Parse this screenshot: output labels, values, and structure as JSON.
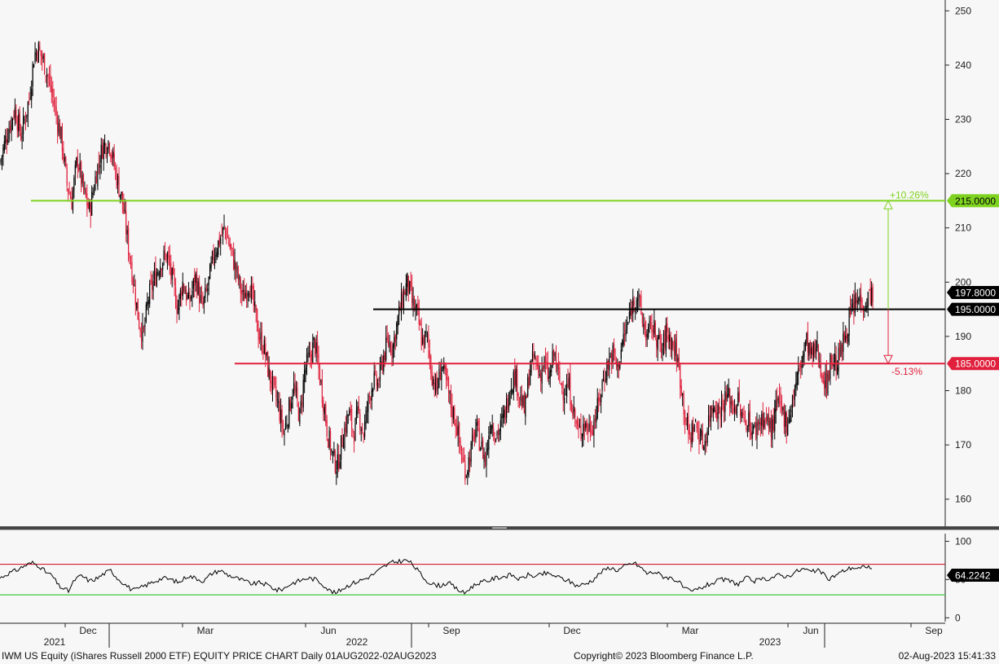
{
  "chart_data": {
    "type": "candlestick",
    "price_panel": {
      "ylim": [
        155,
        252
      ],
      "yticks": [
        160,
        170,
        180,
        190,
        200,
        210,
        220,
        230,
        240,
        250
      ],
      "last_price_label": "197.8000",
      "close_path": [
        [
          0,
          222
        ],
        [
          8,
          227
        ],
        [
          18,
          232
        ],
        [
          26,
          227
        ],
        [
          36,
          234
        ],
        [
          42,
          242
        ],
        [
          47,
          243
        ],
        [
          55,
          240
        ],
        [
          62,
          236
        ],
        [
          70,
          230
        ],
        [
          76,
          226
        ],
        [
          82,
          218
        ],
        [
          88,
          215
        ],
        [
          95,
          223
        ],
        [
          102,
          217
        ],
        [
          110,
          213
        ],
        [
          118,
          220
        ],
        [
          126,
          225
        ],
        [
          134,
          226
        ],
        [
          142,
          220
        ],
        [
          150,
          215
        ],
        [
          158,
          206
        ],
        [
          164,
          200
        ],
        [
          170,
          193
        ],
        [
          176,
          190
        ],
        [
          182,
          197
        ],
        [
          190,
          201
        ],
        [
          198,
          204
        ],
        [
          205,
          205
        ],
        [
          212,
          200
        ],
        [
          218,
          195
        ],
        [
          224,
          200
        ],
        [
          232,
          196
        ],
        [
          240,
          201
        ],
        [
          248,
          195
        ],
        [
          255,
          199
        ],
        [
          262,
          205
        ],
        [
          270,
          208
        ],
        [
          276,
          210
        ],
        [
          283,
          206
        ],
        [
          290,
          202
        ],
        [
          298,
          197
        ],
        [
          306,
          200
        ],
        [
          312,
          195
        ],
        [
          318,
          190
        ],
        [
          324,
          188
        ],
        [
          330,
          183
        ],
        [
          336,
          180
        ],
        [
          342,
          177
        ],
        [
          348,
          172
        ],
        [
          354,
          176
        ],
        [
          360,
          181
        ],
        [
          368,
          175
        ],
        [
          374,
          184
        ],
        [
          380,
          186
        ],
        [
          386,
          189
        ],
        [
          392,
          183
        ],
        [
          398,
          177
        ],
        [
          402,
          172
        ],
        [
          408,
          168
        ],
        [
          414,
          166
        ],
        [
          420,
          171
        ],
        [
          428,
          176
        ],
        [
          434,
          172
        ],
        [
          440,
          176
        ],
        [
          446,
          172
        ],
        [
          452,
          178
        ],
        [
          458,
          182
        ],
        [
          464,
          181
        ],
        [
          470,
          186
        ],
        [
          476,
          189
        ],
        [
          482,
          188
        ],
        [
          488,
          193
        ],
        [
          494,
          197
        ],
        [
          500,
          200
        ],
        [
          506,
          196
        ],
        [
          512,
          194
        ],
        [
          518,
          189
        ],
        [
          524,
          190
        ],
        [
          530,
          183
        ],
        [
          536,
          180
        ],
        [
          542,
          185
        ],
        [
          548,
          181
        ],
        [
          554,
          177
        ],
        [
          560,
          174
        ],
        [
          566,
          168
        ],
        [
          572,
          165
        ],
        [
          578,
          169
        ],
        [
          584,
          173
        ],
        [
          590,
          170
        ],
        [
          596,
          167
        ],
        [
          602,
          175
        ],
        [
          608,
          172
        ],
        [
          614,
          173
        ],
        [
          620,
          176
        ],
        [
          626,
          181
        ],
        [
          632,
          183
        ],
        [
          638,
          179
        ],
        [
          644,
          176
        ],
        [
          650,
          184
        ],
        [
          656,
          186
        ],
        [
          662,
          183
        ],
        [
          668,
          185
        ],
        [
          674,
          182
        ],
        [
          680,
          187
        ],
        [
          686,
          182
        ],
        [
          692,
          180
        ],
        [
          698,
          181
        ],
        [
          704,
          176
        ],
        [
          710,
          172
        ],
        [
          716,
          174
        ],
        [
          722,
          173
        ],
        [
          728,
          174
        ],
        [
          734,
          177
        ],
        [
          740,
          182
        ],
        [
          746,
          185
        ],
        [
          752,
          187
        ],
        [
          758,
          184
        ],
        [
          764,
          189
        ],
        [
          770,
          192
        ],
        [
          776,
          196
        ],
        [
          782,
          198
        ],
        [
          788,
          193
        ],
        [
          794,
          190
        ],
        [
          800,
          192
        ],
        [
          806,
          190
        ],
        [
          812,
          187
        ],
        [
          818,
          191
        ],
        [
          824,
          189
        ],
        [
          830,
          187
        ],
        [
          836,
          181
        ],
        [
          840,
          176
        ],
        [
          846,
          171
        ],
        [
          852,
          174
        ],
        [
          858,
          172
        ],
        [
          864,
          170
        ],
        [
          870,
          175
        ],
        [
          876,
          178
        ],
        [
          882,
          176
        ],
        [
          888,
          178
        ],
        [
          894,
          179
        ],
        [
          900,
          177
        ],
        [
          906,
          178
        ],
        [
          912,
          174
        ],
        [
          918,
          175
        ],
        [
          924,
          172
        ],
        [
          930,
          174
        ],
        [
          936,
          175
        ],
        [
          942,
          174
        ],
        [
          948,
          173
        ],
        [
          954,
          178
        ],
        [
          960,
          176
        ],
        [
          966,
          174
        ],
        [
          972,
          178
        ],
        [
          978,
          182
        ],
        [
          984,
          186
        ],
        [
          990,
          189
        ],
        [
          996,
          186
        ],
        [
          1002,
          188
        ],
        [
          1008,
          184
        ],
        [
          1014,
          181
        ],
        [
          1020,
          186
        ],
        [
          1026,
          185
        ],
        [
          1032,
          187
        ],
        [
          1038,
          191
        ],
        [
          1044,
          194
        ],
        [
          1050,
          196
        ],
        [
          1056,
          197
        ],
        [
          1062,
          196
        ],
        [
          1068,
          198
        ],
        [
          1072,
          197.8
        ]
      ]
    },
    "rsi_panel": {
      "ylim": [
        -5,
        110
      ],
      "yticks": [
        0,
        50,
        100
      ],
      "overbought": 70,
      "oversold": 30,
      "last_value_label": "64.2242",
      "line_path": [
        [
          0,
          52
        ],
        [
          10,
          58
        ],
        [
          20,
          62
        ],
        [
          30,
          68
        ],
        [
          40,
          72
        ],
        [
          48,
          68
        ],
        [
          56,
          60
        ],
        [
          64,
          55
        ],
        [
          72,
          42
        ],
        [
          78,
          38
        ],
        [
          84,
          35
        ],
        [
          92,
          50
        ],
        [
          100,
          55
        ],
        [
          110,
          48
        ],
        [
          120,
          52
        ],
        [
          128,
          58
        ],
        [
          136,
          62
        ],
        [
          144,
          52
        ],
        [
          152,
          45
        ],
        [
          160,
          38
        ],
        [
          166,
          36
        ],
        [
          174,
          40
        ],
        [
          182,
          44
        ],
        [
          190,
          48
        ],
        [
          200,
          52
        ],
        [
          210,
          50
        ],
        [
          220,
          46
        ],
        [
          230,
          55
        ],
        [
          240,
          52
        ],
        [
          250,
          48
        ],
        [
          260,
          58
        ],
        [
          270,
          62
        ],
        [
          280,
          56
        ],
        [
          290,
          52
        ],
        [
          300,
          48
        ],
        [
          310,
          44
        ],
        [
          320,
          46
        ],
        [
          330,
          42
        ],
        [
          340,
          36
        ],
        [
          348,
          38
        ],
        [
          356,
          44
        ],
        [
          366,
          48
        ],
        [
          378,
          52
        ],
        [
          388,
          50
        ],
        [
          396,
          44
        ],
        [
          404,
          36
        ],
        [
          412,
          32
        ],
        [
          420,
          38
        ],
        [
          430,
          44
        ],
        [
          440,
          48
        ],
        [
          450,
          52
        ],
        [
          460,
          58
        ],
        [
          470,
          66
        ],
        [
          480,
          72
        ],
        [
          490,
          74
        ],
        [
          500,
          75
        ],
        [
          506,
          70
        ],
        [
          514,
          60
        ],
        [
          522,
          50
        ],
        [
          530,
          44
        ],
        [
          540,
          42
        ],
        [
          550,
          46
        ],
        [
          560,
          38
        ],
        [
          570,
          32
        ],
        [
          578,
          40
        ],
        [
          588,
          46
        ],
        [
          598,
          48
        ],
        [
          608,
          52
        ],
        [
          618,
          54
        ],
        [
          628,
          56
        ],
        [
          638,
          50
        ],
        [
          648,
          56
        ],
        [
          658,
          54
        ],
        [
          668,
          58
        ],
        [
          678,
          56
        ],
        [
          688,
          52
        ],
        [
          698,
          48
        ],
        [
          708,
          42
        ],
        [
          718,
          44
        ],
        [
          728,
          50
        ],
        [
          738,
          60
        ],
        [
          748,
          66
        ],
        [
          758,
          62
        ],
        [
          768,
          68
        ],
        [
          778,
          72
        ],
        [
          786,
          66
        ],
        [
          794,
          58
        ],
        [
          804,
          60
        ],
        [
          814,
          54
        ],
        [
          824,
          52
        ],
        [
          832,
          48
        ],
        [
          840,
          38
        ],
        [
          848,
          34
        ],
        [
          858,
          38
        ],
        [
          866,
          42
        ],
        [
          876,
          46
        ],
        [
          886,
          50
        ],
        [
          896,
          48
        ],
        [
          906,
          44
        ],
        [
          916,
          52
        ],
        [
          926,
          48
        ],
        [
          936,
          50
        ],
        [
          946,
          52
        ],
        [
          956,
          56
        ],
        [
          966,
          54
        ],
        [
          976,
          60
        ],
        [
          986,
          64
        ],
        [
          996,
          60
        ],
        [
          1006,
          62
        ],
        [
          1016,
          50
        ],
        [
          1026,
          56
        ],
        [
          1036,
          62
        ],
        [
          1046,
          66
        ],
        [
          1056,
          64
        ],
        [
          1062,
          68
        ],
        [
          1068,
          66
        ],
        [
          1070,
          64.2
        ]
      ]
    },
    "month_ticks": [
      {
        "x": 108,
        "label": "Dec"
      },
      {
        "x": 252,
        "label": "Mar"
      },
      {
        "x": 403,
        "label": "Jun"
      },
      {
        "x": 554,
        "label": "Sep"
      },
      {
        "x": 702,
        "label": "Dec"
      },
      {
        "x": 847,
        "label": "Mar"
      },
      {
        "x": 995,
        "label": "Jun"
      },
      {
        "x": 1146,
        "label": "Sep"
      }
    ],
    "year_ticks": [
      {
        "x": 67,
        "label": "2021"
      },
      {
        "x": 438,
        "label": "2022"
      },
      {
        "x": 945,
        "label": "2023"
      }
    ],
    "hlines": [
      {
        "value": 215,
        "label": "215.0000",
        "color": "#7fd320",
        "start_x": 38
      },
      {
        "value": 195,
        "label": "195.0000",
        "color": "#000000",
        "start_x": 458
      },
      {
        "value": 185,
        "label": "185.0000",
        "color": "#e0203c",
        "start_x": 288
      }
    ],
    "annotations": [
      {
        "label": "+10.26%",
        "color": "#7fd320"
      },
      {
        "label": "-5.13%",
        "color": "#e0203c"
      }
    ],
    "colors": {
      "up": "#000000",
      "down": "#e0203c",
      "rsi_line": "#000000",
      "overbought_line": "#d01c2c",
      "oversold_line": "#3cc83c",
      "panel_bg": "#f7f7f7"
    }
  },
  "footer": {
    "left": "IWM US Equity (iShares Russell 2000 ETF) EQUITY PRICE CHART  Daily 01AUG2022-02AUG2023",
    "center": "Copyright© 2023 Bloomberg Finance L.P.",
    "right": "02-Aug-2023 15:41:33"
  }
}
